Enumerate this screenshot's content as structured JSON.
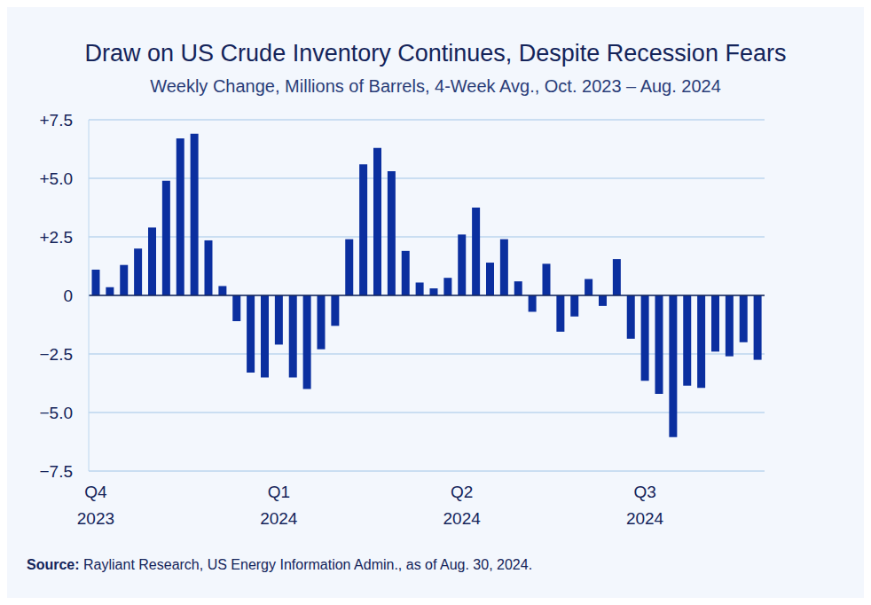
{
  "chart_data": {
    "type": "bar",
    "title": "Draw on US Crude Inventory Continues, Despite Recession Fears",
    "subtitle": "Weekly Change, Millions of Barrels, 4-Week Avg., Oct. 2023 – Aug. 2024",
    "source": "Source: Rayliant Research, US Energy Information Admin., as of Aug. 30, 2024.",
    "categories": [
      "Q4 2023",
      null,
      null,
      null,
      null,
      null,
      null,
      null,
      null,
      null,
      null,
      null,
      null,
      "Q1 2024",
      null,
      null,
      null,
      null,
      null,
      null,
      null,
      null,
      null,
      null,
      null,
      null,
      "Q2 2024",
      null,
      null,
      null,
      null,
      null,
      null,
      null,
      null,
      null,
      null,
      null,
      null,
      "Q3 2024",
      null,
      null,
      null,
      null,
      null,
      null,
      null,
      null
    ],
    "values": [
      1.1,
      0.35,
      1.3,
      2.0,
      2.9,
      4.9,
      6.7,
      6.9,
      2.35,
      0.4,
      -1.1,
      -3.3,
      -3.5,
      -2.1,
      -3.5,
      -4.0,
      -2.3,
      -1.3,
      2.4,
      5.6,
      6.3,
      5.3,
      1.9,
      0.55,
      0.3,
      0.75,
      2.6,
      3.75,
      1.4,
      2.4,
      0.6,
      -0.7,
      1.35,
      -1.55,
      -0.9,
      0.7,
      -0.45,
      1.55,
      -1.85,
      -3.65,
      -4.2,
      -6.05,
      -3.85,
      -3.95,
      -2.4,
      -2.6,
      -2.0,
      -2.75
    ],
    "color": "#0b2f9f",
    "ylim": [
      -7.5,
      7.5
    ],
    "yticks": [
      {
        "value": -7.5,
        "label": "−7.5"
      },
      {
        "value": -5,
        "label": "−5.0"
      },
      {
        "value": -2.5,
        "label": "−2.5"
      },
      0,
      {
        "value": 2.5,
        "label": "+2.5"
      },
      {
        "value": 5,
        "label": "+5.0"
      },
      {
        "value": 7.5,
        "label": "+7.5"
      }
    ],
    "grid": true
  }
}
